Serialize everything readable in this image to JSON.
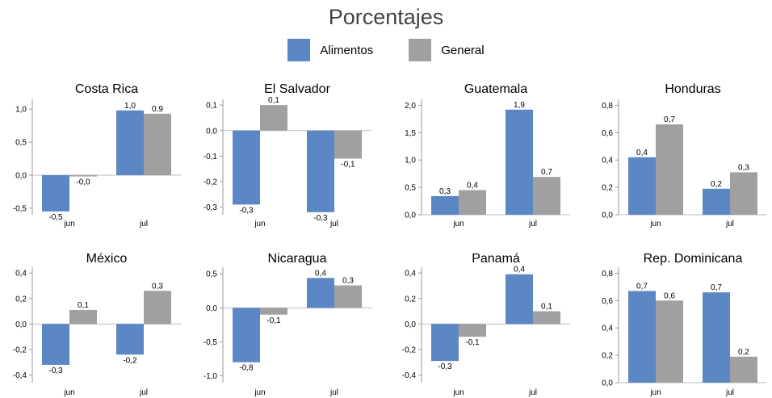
{
  "title": "Porcentajes",
  "legend": [
    {
      "name": "Alimentos",
      "color": "#5b87c5"
    },
    {
      "name": "General",
      "color": "#a0a0a0"
    }
  ],
  "chart_data": [
    {
      "type": "bar",
      "title": "Costa Rica",
      "categories": [
        "jun",
        "jul"
      ],
      "series": [
        {
          "name": "Alimentos",
          "values": [
            -0.55,
            0.98
          ],
          "labels": [
            "-0,5",
            "1,0"
          ]
        },
        {
          "name": "General",
          "values": [
            -0.02,
            0.93
          ],
          "labels": [
            "-0,0",
            "0,9"
          ]
        }
      ],
      "ylim": [
        -0.6,
        1.1
      ],
      "yticks": [
        -0.5,
        0.0,
        0.5,
        1.0
      ],
      "ytick_labels": [
        "-0,5",
        "0,0",
        "0,5",
        "1,0"
      ]
    },
    {
      "type": "bar",
      "title": "El Salvador",
      "categories": [
        "jun",
        "jul"
      ],
      "series": [
        {
          "name": "Alimentos",
          "values": [
            -0.29,
            -0.32
          ],
          "labels": [
            "-0,3",
            "-0,3"
          ]
        },
        {
          "name": "General",
          "values": [
            0.1,
            -0.11
          ],
          "labels": [
            "0,1",
            "-0,1"
          ]
        }
      ],
      "ylim": [
        -0.33,
        0.11
      ],
      "yticks": [
        -0.3,
        -0.2,
        -0.1,
        0.0,
        0.1
      ],
      "ytick_labels": [
        "-0,3",
        "-0,2",
        "-0,1",
        "0,0",
        "0,1"
      ]
    },
    {
      "type": "bar",
      "title": "Guatemala",
      "categories": [
        "jun",
        "jul"
      ],
      "series": [
        {
          "name": "Alimentos",
          "values": [
            0.34,
            1.92
          ],
          "labels": [
            "0,3",
            "1,9"
          ]
        },
        {
          "name": "General",
          "values": [
            0.45,
            0.69
          ],
          "labels": [
            "0,4",
            "0,7"
          ]
        }
      ],
      "ylim": [
        0.0,
        2.05
      ],
      "yticks": [
        0.0,
        0.5,
        1.0,
        1.5,
        2.0
      ],
      "ytick_labels": [
        "0,0",
        "0,5",
        "1,0",
        "1,5",
        "2,0"
      ]
    },
    {
      "type": "bar",
      "title": "Honduras",
      "categories": [
        "jun",
        "jul"
      ],
      "series": [
        {
          "name": "Alimentos",
          "values": [
            0.42,
            0.19
          ],
          "labels": [
            "0,4",
            "0,2"
          ]
        },
        {
          "name": "General",
          "values": [
            0.66,
            0.31
          ],
          "labels": [
            "0,7",
            "0,3"
          ]
        }
      ],
      "ylim": [
        0.0,
        0.82
      ],
      "yticks": [
        0.0,
        0.2,
        0.4,
        0.6,
        0.8
      ],
      "ytick_labels": [
        "0,0",
        "0,2",
        "0,4",
        "0,6",
        "0,8"
      ]
    },
    {
      "type": "bar",
      "title": "México",
      "categories": [
        "jun",
        "jul"
      ],
      "series": [
        {
          "name": "Alimentos",
          "values": [
            -0.32,
            -0.24
          ],
          "labels": [
            "-0,3",
            "-0,2"
          ]
        },
        {
          "name": "General",
          "values": [
            0.11,
            0.26
          ],
          "labels": [
            "0,1",
            "0,3"
          ]
        }
      ],
      "ylim": [
        -0.46,
        0.42
      ],
      "yticks": [
        -0.4,
        -0.2,
        0.0,
        0.2,
        0.4
      ],
      "ytick_labels": [
        "-0,4",
        "-0,2",
        "0,0",
        "0,2",
        "0,4"
      ]
    },
    {
      "type": "bar",
      "title": "Nicaragua",
      "categories": [
        "jun",
        "jul"
      ],
      "series": [
        {
          "name": "Alimentos",
          "values": [
            -0.8,
            0.44
          ],
          "labels": [
            "-0,8",
            "0,4"
          ]
        },
        {
          "name": "General",
          "values": [
            -0.1,
            0.33
          ],
          "labels": [
            "-0,1",
            "0,3"
          ]
        }
      ],
      "ylim": [
        -1.1,
        0.55
      ],
      "yticks": [
        -1.0,
        -0.5,
        0.0,
        0.5
      ],
      "ytick_labels": [
        "-1,0",
        "-0,5",
        "0,0",
        "0,5"
      ]
    },
    {
      "type": "bar",
      "title": "Panamá",
      "categories": [
        "jun",
        "jul"
      ],
      "series": [
        {
          "name": "Alimentos",
          "values": [
            -0.29,
            0.39
          ],
          "labels": [
            "-0,3",
            "0,4"
          ]
        },
        {
          "name": "General",
          "values": [
            -0.1,
            0.1
          ],
          "labels": [
            "-0,1",
            "0,1"
          ]
        }
      ],
      "ylim": [
        -0.46,
        0.42
      ],
      "yticks": [
        -0.4,
        -0.2,
        0.0,
        0.2,
        0.4
      ],
      "ytick_labels": [
        "-0,4",
        "-0,2",
        "0,0",
        "0,2",
        "0,4"
      ]
    },
    {
      "type": "bar",
      "title": "Rep. Dominicana",
      "categories": [
        "jun",
        "jul"
      ],
      "series": [
        {
          "name": "Alimentos",
          "values": [
            0.67,
            0.66
          ],
          "labels": [
            "0,7",
            "0,7"
          ]
        },
        {
          "name": "General",
          "values": [
            0.6,
            0.19
          ],
          "labels": [
            "0,6",
            "0,2"
          ]
        }
      ],
      "ylim": [
        0.0,
        0.82
      ],
      "yticks": [
        0.0,
        0.2,
        0.4,
        0.6,
        0.8
      ],
      "ytick_labels": [
        "0,0",
        "0,2",
        "0,4",
        "0,6",
        "0,8"
      ]
    }
  ]
}
